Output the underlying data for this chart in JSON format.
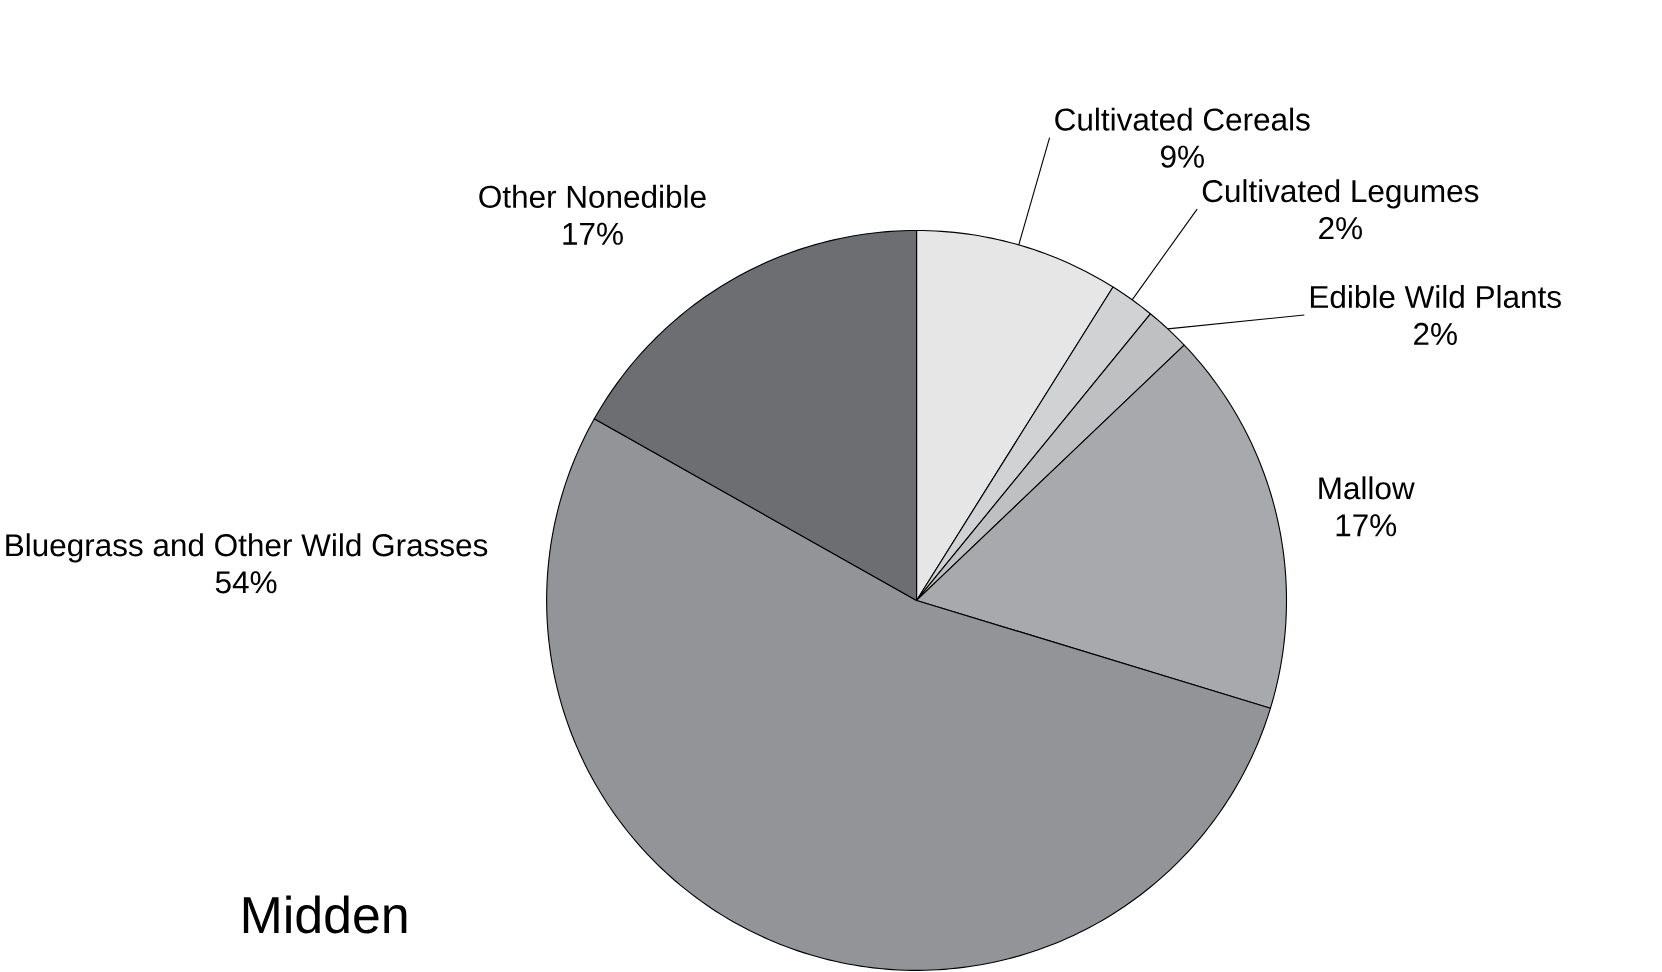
{
  "chart_data": {
    "type": "pie",
    "title": "Midden",
    "categories": [
      "Cultivated Cereals",
      "Cultivated Legumes",
      "Edible Wild Plants",
      "Mallow",
      "Bluegrass and Other Wild Grasses",
      "Other Nonedible"
    ],
    "values": [
      9,
      2,
      2,
      17,
      54,
      17
    ],
    "value_labels": [
      "9%",
      "2%",
      "2%",
      "17%",
      "54%",
      "17%"
    ],
    "colors": [
      "#e6e6e7",
      "#d1d2d3",
      "#bfc0c2",
      "#a8a9ac",
      "#939497",
      "#6d6e71"
    ]
  }
}
